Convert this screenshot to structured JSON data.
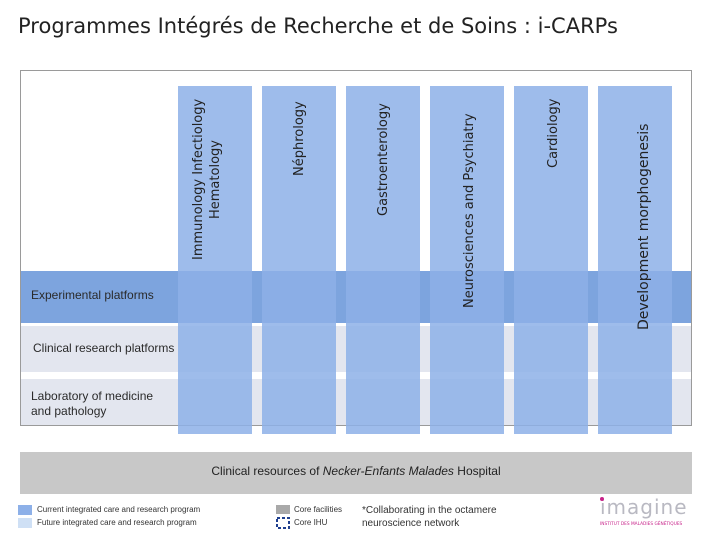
{
  "title": "Programmes Intégrés de Recherche et de Soins : i-CARPs",
  "rows": {
    "experimental": "Experimental platforms",
    "clinical_research": "Clinical research platforms",
    "laboratory": "Laboratory of medicine\nand pathology"
  },
  "columns": [
    {
      "line1": "Immunology Infectiology",
      "line2": "Hematology"
    },
    {
      "line1": "Néphrology"
    },
    {
      "line1": "Gastroenterology"
    },
    {
      "line1": "Neurosciences  and Psychiatry"
    },
    {
      "line1": "Cardiology"
    },
    {
      "line1": "Development  morphogenesis"
    }
  ],
  "bottom": {
    "prefix": "Clinical resources of ",
    "italic": "Necker-Enfants Malades",
    "suffix": " Hospital"
  },
  "legend": {
    "current": "Current integrated care and research program",
    "future": "Future integrated care and research program",
    "core_facilities": "Core facilities",
    "core_ihu": "Core IHU",
    "note_line1": "*Collaborating in the octamere",
    "note_line2": "neuroscience network"
  },
  "logo": {
    "text": "imagine",
    "subtitle": "INSTITUT DES MALADIES GÉNÉTIQUES"
  },
  "colors": {
    "current_program": "#8db0e8",
    "future_program": "#cfe0f5",
    "core_facilities": "#a9a9a9",
    "experimental_band": "#7da4de",
    "clinical_band": "#e3e6ef",
    "logo_accent": "#c8238a"
  }
}
